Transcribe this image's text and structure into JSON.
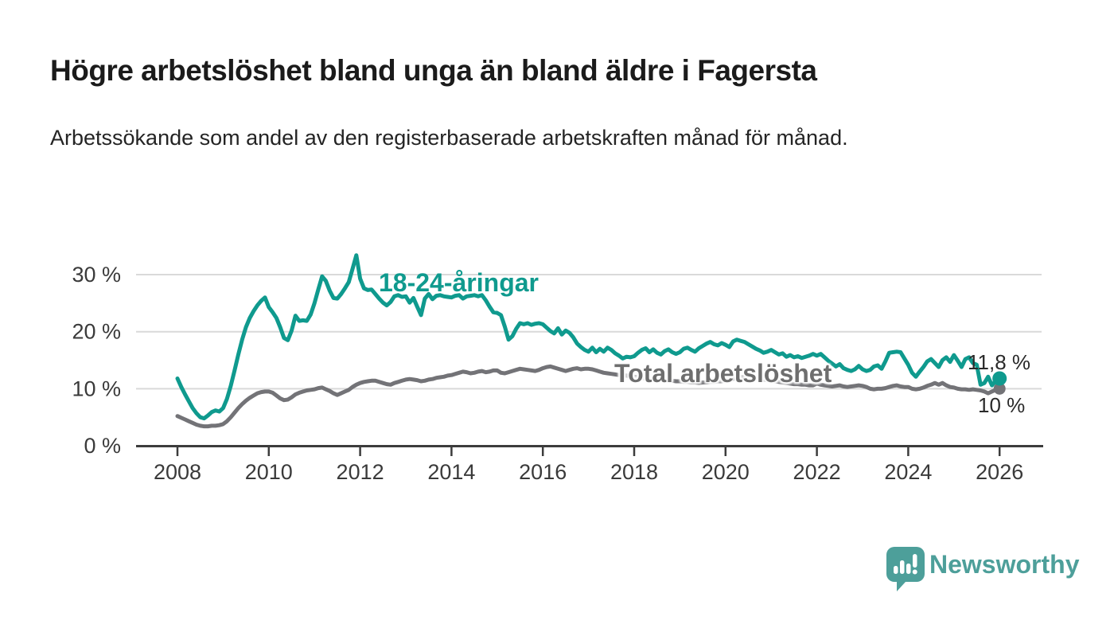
{
  "header": {
    "title": "Högre arbetslöshet bland unga än bland äldre i Fagersta",
    "subtitle": "Arbetssökande som andel av den registerbaserade arbetskraften månad för månad."
  },
  "chart_data": {
    "type": "line",
    "title": "Högre arbetslöshet bland unga än bland äldre i Fagersta",
    "subtitle": "Arbetssökande som andel av den registerbaserade arbetskraften månad för månad.",
    "unit": "%",
    "x_start_year": 2008,
    "points_per_year": 12,
    "xlim": [
      2007.1,
      2026.9
    ],
    "ylim": [
      0,
      35
    ],
    "grid": "horizontal",
    "legend_position": "inline-labels-on-lines",
    "x_ticks": [
      "2008",
      "2010",
      "2012",
      "2014",
      "2016",
      "2018",
      "2020",
      "2022",
      "2024",
      "2026"
    ],
    "x_tick_years": [
      2008,
      2010,
      2012,
      2014,
      2016,
      2018,
      2020,
      2022,
      2024,
      2026
    ],
    "y_ticks": [
      {
        "value": 0,
        "label": "0 %"
      },
      {
        "value": 10,
        "label": "10 %"
      },
      {
        "value": 20,
        "label": "20 %"
      },
      {
        "value": 30,
        "label": "30 %"
      }
    ],
    "series": [
      {
        "name": "Total arbetslöshet",
        "color": "#737377",
        "end_label": "10 %",
        "end_value": 10,
        "values": [
          5.2,
          4.9,
          4.6,
          4.3,
          4.0,
          3.7,
          3.5,
          3.4,
          3.4,
          3.5,
          3.5,
          3.6,
          3.8,
          4.3,
          5.0,
          5.8,
          6.6,
          7.3,
          7.9,
          8.4,
          8.8,
          9.2,
          9.4,
          9.5,
          9.5,
          9.3,
          8.8,
          8.3,
          8.0,
          8.1,
          8.5,
          9.0,
          9.3,
          9.5,
          9.7,
          9.8,
          9.9,
          10.1,
          10.2,
          9.9,
          9.6,
          9.2,
          8.9,
          9.2,
          9.5,
          9.8,
          10.3,
          10.7,
          11.0,
          11.2,
          11.3,
          11.4,
          11.4,
          11.2,
          11.0,
          10.8,
          10.7,
          11.0,
          11.2,
          11.4,
          11.6,
          11.7,
          11.6,
          11.5,
          11.3,
          11.4,
          11.6,
          11.7,
          11.9,
          12.0,
          12.1,
          12.3,
          12.4,
          12.6,
          12.8,
          13.0,
          12.9,
          12.7,
          12.8,
          13.0,
          13.1,
          12.9,
          13.0,
          13.2,
          13.2,
          12.8,
          12.7,
          12.9,
          13.1,
          13.3,
          13.5,
          13.4,
          13.3,
          13.2,
          13.1,
          13.3,
          13.6,
          13.8,
          13.9,
          13.7,
          13.5,
          13.3,
          13.1,
          13.3,
          13.5,
          13.6,
          13.4,
          13.5,
          13.5,
          13.4,
          13.2,
          13.0,
          12.8,
          12.7,
          12.6,
          12.5,
          12.4,
          12.3,
          12.3,
          12.2,
          12.1,
          12.0,
          11.9,
          11.8,
          11.7,
          11.6,
          11.6,
          11.5,
          11.5,
          11.4,
          11.4,
          11.3,
          11.3,
          11.2,
          11.2,
          11.1,
          11.1,
          11.0,
          11.1,
          11.1,
          11.2,
          11.2,
          11.3,
          11.3,
          11.4,
          11.5,
          11.7,
          11.9,
          12.0,
          12.1,
          12.0,
          11.9,
          11.8,
          11.7,
          11.6,
          11.5,
          11.4,
          11.3,
          11.2,
          11.1,
          11.0,
          10.9,
          10.8,
          10.8,
          10.7,
          10.7,
          10.6,
          10.6,
          10.9,
          10.7,
          10.6,
          10.5,
          10.4,
          10.5,
          10.6,
          10.4,
          10.3,
          10.4,
          10.5,
          10.6,
          10.5,
          10.3,
          10.0,
          9.9,
          10.0,
          10.0,
          10.1,
          10.3,
          10.5,
          10.6,
          10.4,
          10.3,
          10.3,
          10.0,
          9.9,
          10.0,
          10.2,
          10.5,
          10.7,
          11.0,
          10.7,
          11.0,
          10.6,
          10.3,
          10.2,
          10.0,
          9.9,
          9.9,
          9.8,
          9.9,
          9.8,
          9.7,
          9.5,
          9.2,
          9.5,
          9.8,
          10.0
        ]
      },
      {
        "name": "18-24-åringar",
        "color": "#0f9a8e",
        "end_label": "11,8 %",
        "end_value": 11.8,
        "values": [
          11.8,
          10.3,
          9.0,
          7.8,
          6.6,
          5.7,
          5.0,
          4.8,
          5.3,
          5.9,
          6.2,
          6.0,
          6.6,
          8.2,
          10.5,
          13.2,
          16.0,
          18.6,
          20.8,
          22.4,
          23.6,
          24.6,
          25.4,
          26.0,
          24.3,
          23.4,
          22.4,
          20.8,
          18.9,
          18.5,
          20.2,
          22.8,
          21.9,
          22.0,
          21.9,
          23.0,
          25.0,
          27.4,
          29.7,
          28.9,
          27.2,
          25.9,
          25.8,
          26.6,
          27.6,
          28.7,
          31.0,
          33.4,
          29.3,
          27.6,
          27.3,
          27.4,
          26.6,
          25.8,
          25.1,
          24.6,
          25.2,
          26.2,
          26.4,
          26.1,
          26.2,
          25.1,
          25.9,
          24.4,
          22.9,
          25.8,
          26.6,
          25.7,
          26.3,
          26.4,
          26.2,
          26.1,
          26.0,
          26.3,
          26.4,
          25.8,
          26.2,
          26.3,
          26.4,
          26.2,
          26.4,
          25.5,
          24.4,
          23.4,
          23.3,
          22.9,
          20.9,
          18.6,
          19.2,
          20.5,
          21.5,
          21.3,
          21.5,
          21.2,
          21.4,
          21.5,
          21.3,
          20.7,
          20.1,
          19.7,
          20.6,
          19.5,
          20.2,
          19.8,
          19.0,
          17.9,
          17.3,
          16.8,
          16.5,
          17.2,
          16.4,
          17.0,
          16.5,
          17.2,
          16.8,
          16.2,
          15.8,
          15.3,
          15.6,
          15.5,
          15.7,
          16.3,
          16.8,
          17.1,
          16.4,
          16.9,
          16.3,
          16.0,
          16.6,
          16.9,
          16.4,
          16.1,
          16.4,
          17.0,
          17.2,
          16.8,
          16.5,
          17.1,
          17.5,
          17.9,
          18.2,
          17.8,
          17.6,
          18.0,
          17.7,
          17.3,
          18.3,
          18.6,
          18.4,
          18.2,
          17.8,
          17.4,
          17.0,
          16.7,
          16.3,
          16.5,
          16.8,
          16.4,
          16.0,
          16.2,
          15.6,
          15.9,
          15.5,
          15.7,
          15.4,
          15.6,
          15.8,
          16.1,
          15.8,
          16.1,
          15.5,
          14.9,
          14.4,
          13.9,
          14.3,
          13.6,
          13.3,
          13.1,
          13.4,
          14.0,
          13.4,
          13.1,
          13.3,
          13.9,
          14.1,
          13.5,
          14.8,
          16.3,
          16.4,
          16.5,
          16.4,
          15.3,
          14.2,
          12.8,
          12.1,
          13.0,
          13.8,
          14.8,
          15.2,
          14.5,
          13.8,
          15.0,
          15.5,
          14.7,
          15.9,
          14.9,
          13.8,
          15.2,
          15.5,
          14.5,
          14.2,
          10.7,
          11.0,
          12.1,
          10.6,
          11.4,
          11.8
        ]
      }
    ]
  },
  "branding": {
    "name": "Newsworthy",
    "icon": "newsworthy-logo-icon",
    "color": "#4d9f9a"
  }
}
